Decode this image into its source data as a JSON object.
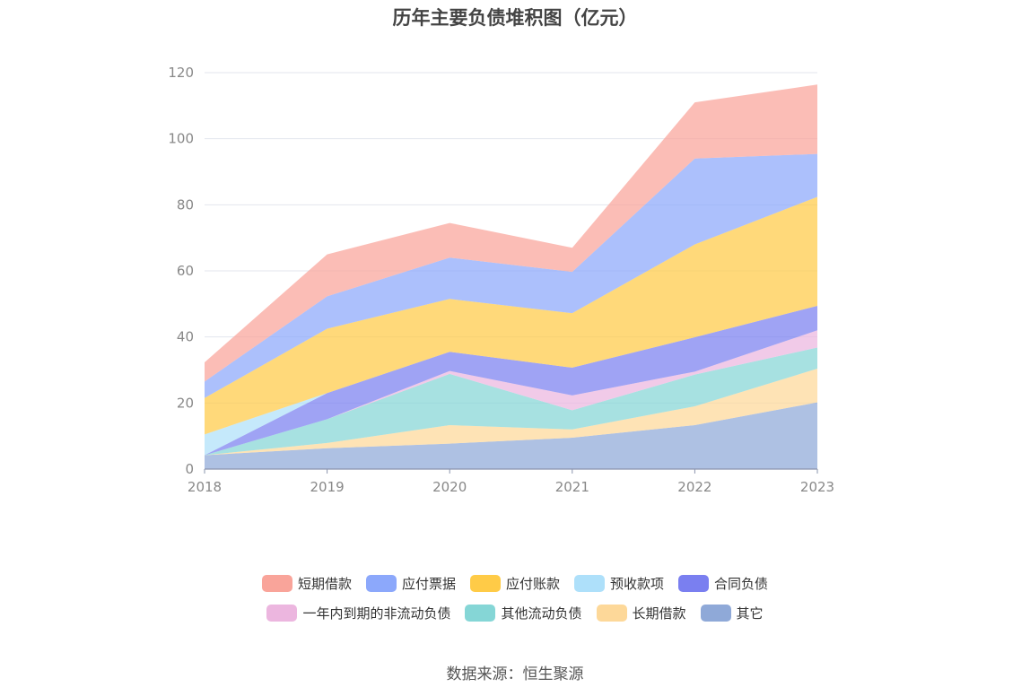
{
  "chart_data": {
    "type": "area",
    "stacked": true,
    "title": "历年主要负债堆积图（亿元）",
    "x": [
      "2018",
      "2019",
      "2020",
      "2021",
      "2022",
      "2023"
    ],
    "ylim": [
      0,
      120
    ],
    "yticks": [
      0,
      20,
      40,
      60,
      80,
      100,
      120
    ],
    "grid": true,
    "legend_position": "bottom",
    "series": [
      {
        "name": "其它",
        "color": "#8fa9d8",
        "values": [
          4.2,
          6.3,
          7.7,
          9.5,
          13.3,
          20.2
        ]
      },
      {
        "name": "长期借款",
        "color": "#fdd899",
        "values": [
          0.0,
          1.6,
          5.6,
          2.5,
          5.7,
          10.2
        ]
      },
      {
        "name": "其他流动负债",
        "color": "#85d6d6",
        "values": [
          0.0,
          7.2,
          15.5,
          5.8,
          9.6,
          6.4
        ]
      },
      {
        "name": "一年内到期的非流动负债",
        "color": "#ecb6df",
        "values": [
          0.0,
          0.0,
          0.9,
          4.5,
          0.9,
          5.2
        ]
      },
      {
        "name": "合同负债",
        "color": "#7a7ff0",
        "values": [
          0.0,
          7.9,
          5.8,
          8.4,
          10.4,
          7.4
        ]
      },
      {
        "name": "预收款项",
        "color": "#aee0fa",
        "values": [
          6.3,
          0.0,
          0.0,
          0.0,
          0.0,
          0.0
        ]
      },
      {
        "name": "应付账款",
        "color": "#ffcb47",
        "values": [
          11.0,
          19.5,
          16.0,
          16.5,
          28.1,
          33.0
        ]
      },
      {
        "name": "应付票据",
        "color": "#8ca8fb",
        "values": [
          5.0,
          9.8,
          12.5,
          12.5,
          26.0,
          13.0
        ]
      },
      {
        "name": "短期借款",
        "color": "#f9a49a",
        "values": [
          5.8,
          12.7,
          10.5,
          7.3,
          17.0,
          21.0
        ]
      }
    ],
    "legend_rows": [
      [
        "短期借款",
        "应付票据",
        "应付账款",
        "预收款项",
        "合同负债"
      ],
      [
        "一年内到期的非流动负债",
        "其他流动负债",
        "长期借款",
        "其它"
      ]
    ]
  },
  "legend_colors": {
    "短期借款": "#f9a49a",
    "应付票据": "#8ca8fb",
    "应付账款": "#ffcb47",
    "预收款项": "#aee0fa",
    "合同负债": "#7a7ff0",
    "一年内到期的非流动负债": "#ecb6df",
    "其他流动负债": "#85d6d6",
    "长期借款": "#fdd899",
    "其它": "#8fa9d8"
  },
  "source": "数据来源：恒生聚源"
}
